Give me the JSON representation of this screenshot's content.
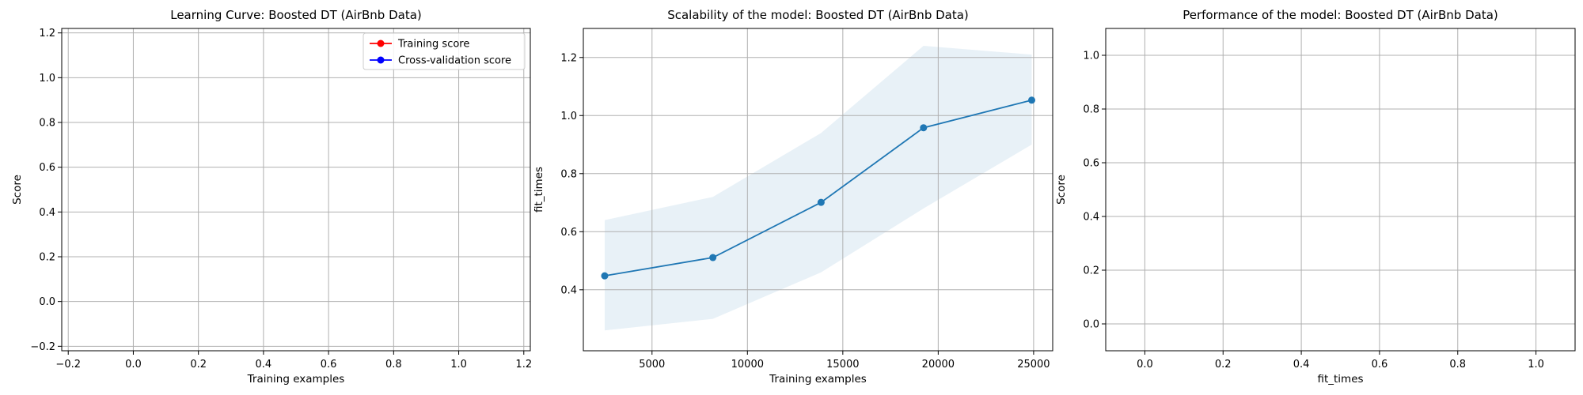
{
  "chart_data": [
    {
      "type": "line",
      "title": "Learning Curve: Boosted DT (AirBnb Data)",
      "xlabel": "Training examples",
      "ylabel": "Score",
      "xlim": [
        -0.22,
        1.22
      ],
      "ylim": [
        -0.22,
        1.22
      ],
      "xticks": [
        -0.2,
        0.0,
        0.2,
        0.4,
        0.6,
        0.8,
        1.0,
        1.2
      ],
      "xtick_labels": [
        "−0.2",
        "0.0",
        "0.2",
        "0.4",
        "0.6",
        "0.8",
        "1.0",
        "1.2"
      ],
      "yticks": [
        -0.2,
        0.0,
        0.2,
        0.4,
        0.6,
        0.8,
        1.0,
        1.2
      ],
      "ytick_labels": [
        "−0.2",
        "0.0",
        "0.2",
        "0.4",
        "0.6",
        "0.8",
        "1.0",
        "1.2"
      ],
      "grid": true,
      "legend_position": "top-right",
      "series": [
        {
          "name": "Training score",
          "color": "#ff0000",
          "values": []
        },
        {
          "name": "Cross-validation score",
          "color": "#0000ff",
          "values": []
        }
      ]
    },
    {
      "type": "line",
      "title": "Scalability of the model: Boosted DT (AirBnb Data)",
      "xlabel": "Training examples",
      "ylabel": "fit_times",
      "xlim": [
        1400,
        26000
      ],
      "ylim": [
        0.19,
        1.3
      ],
      "xticks": [
        5000,
        10000,
        15000,
        20000,
        25000
      ],
      "xtick_labels": [
        "5000",
        "10000",
        "15000",
        "20000",
        "25000"
      ],
      "yticks": [
        0.4,
        0.6,
        0.8,
        1.0,
        1.2
      ],
      "ytick_labels": [
        "0.4",
        "0.6",
        "0.8",
        "1.0",
        "1.2"
      ],
      "grid": true,
      "series": [
        {
          "color": "#1f77b4",
          "x": [
            2520,
            8190,
            13860,
            19230,
            24900
          ],
          "values": [
            0.448,
            0.511,
            0.701,
            0.958,
            1.053
          ],
          "band_upper": [
            0.64,
            0.72,
            0.94,
            1.24,
            1.21
          ],
          "band_lower": [
            0.26,
            0.3,
            0.46,
            0.68,
            0.9
          ]
        }
      ]
    },
    {
      "type": "line",
      "title": "Performance of the model: Boosted DT (AirBnb Data)",
      "xlabel": "fit_times",
      "ylabel": "Score",
      "xlim": [
        -0.1,
        1.1
      ],
      "ylim": [
        -0.1,
        1.1
      ],
      "xticks": [
        0.0,
        0.2,
        0.4,
        0.6,
        0.8,
        1.0
      ],
      "xtick_labels": [
        "0.0",
        "0.2",
        "0.4",
        "0.6",
        "0.8",
        "1.0"
      ],
      "yticks": [
        0.0,
        0.2,
        0.4,
        0.6,
        0.8,
        1.0
      ],
      "ytick_labels": [
        "0.0",
        "0.2",
        "0.4",
        "0.6",
        "0.8",
        "1.0"
      ],
      "grid": true,
      "series": []
    }
  ]
}
